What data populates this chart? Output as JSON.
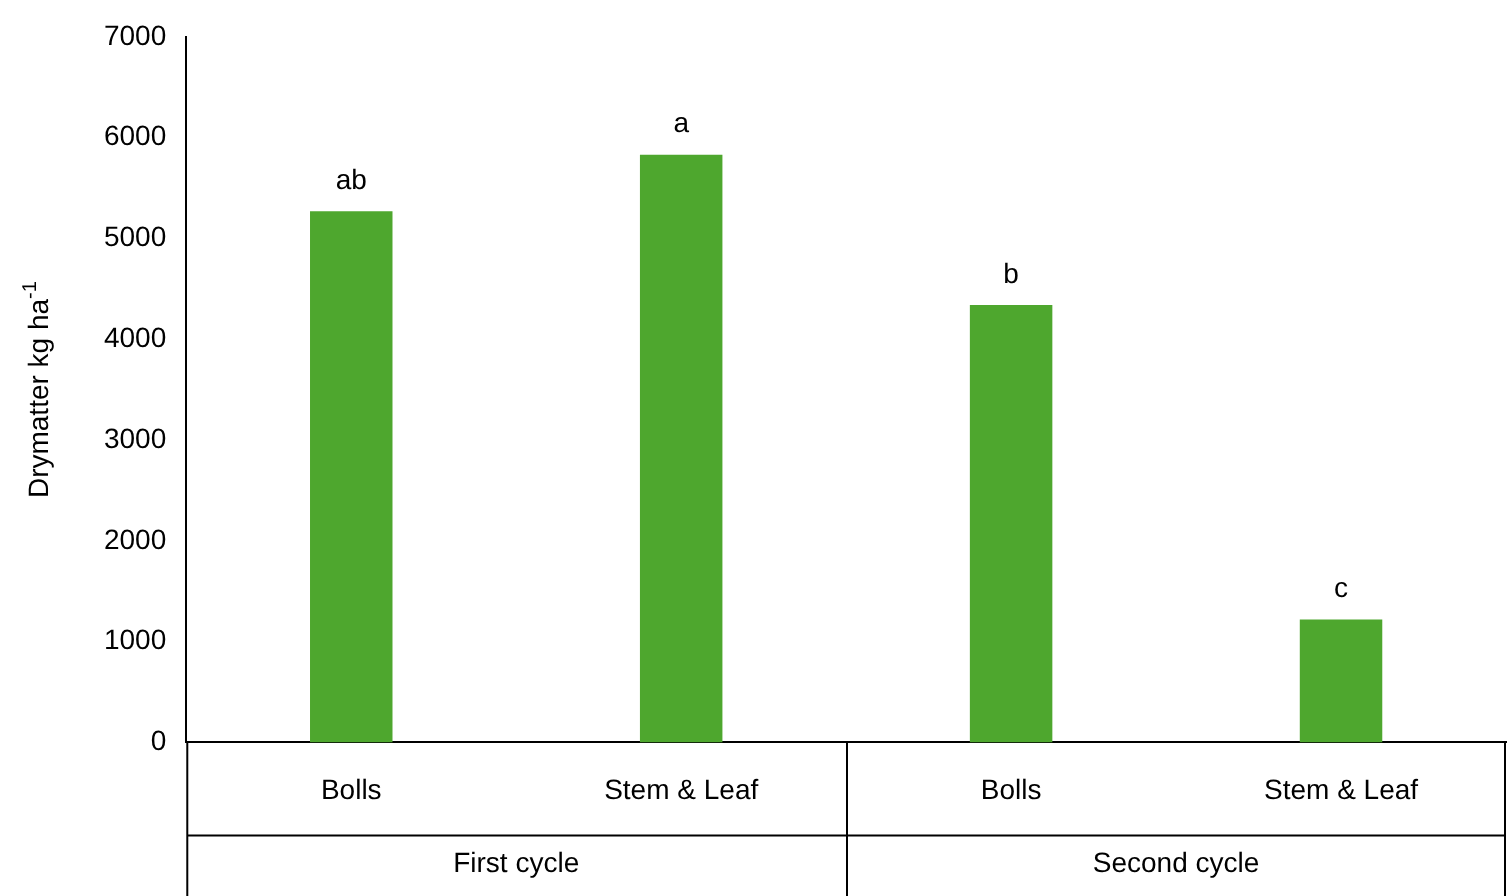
{
  "chart_data": {
    "type": "bar",
    "ylabel": "Drymatter kg ha$^{-1}$",
    "categories": [
      "Bolls",
      "Stem & Leaf",
      "Bolls",
      "Stem & Leaf"
    ],
    "values": [
      5270,
      5830,
      4340,
      1220
    ],
    "value_labels": [
      "ab",
      "a",
      "b",
      "c"
    ],
    "color": "#4ea72e",
    "ylim": [
      0,
      7000
    ],
    "yticks": [
      0,
      1000,
      2000,
      3000,
      4000,
      5000,
      6000,
      7000
    ],
    "annotations": [
      "First cycle",
      "Second cycle"
    ],
    "grid": false,
    "legend": false
  }
}
